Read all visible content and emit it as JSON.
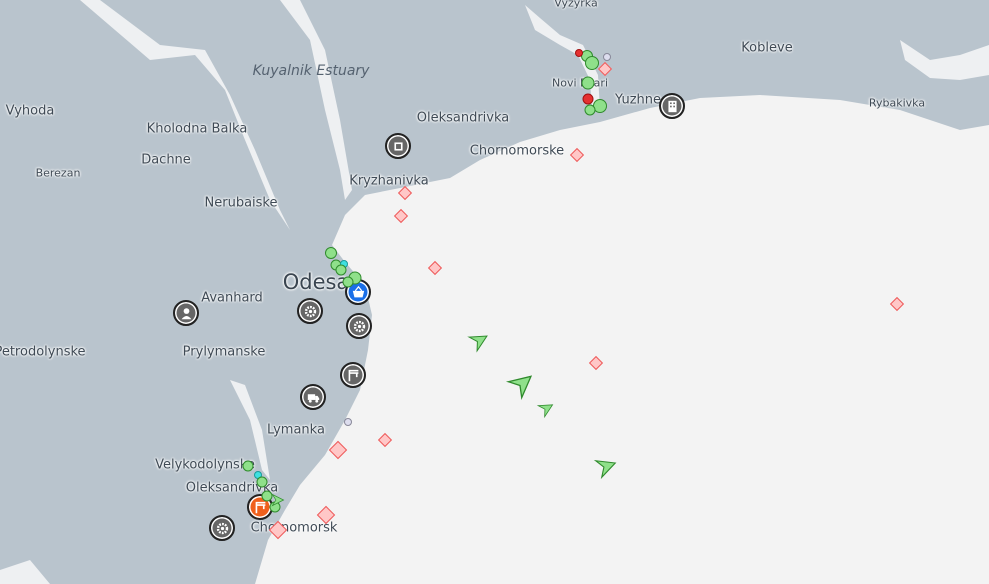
{
  "map": {
    "colors": {
      "land": "#b9c4cd",
      "sea": "#f3f3f3",
      "vessel": "#8fe08a",
      "anchorage": "#ee5a5a",
      "port_icon": "#1a6fe8",
      "shipyard_icon": "#f0601c"
    },
    "places": [
      {
        "name": "Vyzyrka"
      },
      {
        "name": "Kuyalnik Estuary"
      },
      {
        "name": "Kobleve"
      },
      {
        "name": "Vyhoda"
      },
      {
        "name": "Novi Bilari"
      },
      {
        "name": "Yuzhne"
      },
      {
        "name": "Rybakivka"
      },
      {
        "name": "Kholodna Balka"
      },
      {
        "name": "Oleksandrivka"
      },
      {
        "name": "Chornomorske"
      },
      {
        "name": "Dachne"
      },
      {
        "name": "Berezan"
      },
      {
        "name": "Kryzhanivka"
      },
      {
        "name": "Nerubaiske"
      },
      {
        "name": "Odesa"
      },
      {
        "name": "Avanhard"
      },
      {
        "name": "Petrodolynske"
      },
      {
        "name": "Prylymanske"
      },
      {
        "name": "Lymanka"
      },
      {
        "name": "Velykodolynske"
      },
      {
        "name": "Oleksandrivka"
      },
      {
        "name": "Chornomorsk"
      }
    ],
    "poi_icons": [
      "chip-icon",
      "building-icon",
      "basket-icon",
      "gear-icon",
      "gear-icon",
      "worker-icon",
      "crane-icon",
      "truck-icon",
      "gear-icon",
      "crane-icon"
    ]
  }
}
